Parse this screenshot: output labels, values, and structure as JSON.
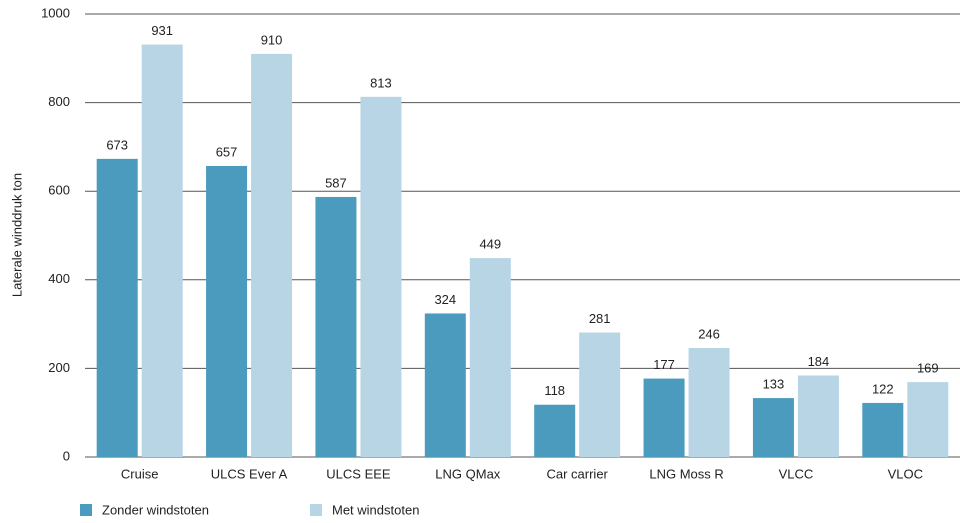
{
  "chart_data": {
    "type": "bar",
    "y_label": "Laterale winddruk ton",
    "categories": [
      "Cruise",
      "ULCS Ever A",
      "ULCS EEE",
      "LNG QMax",
      "Car carrier",
      "LNG Moss R",
      "VLCC",
      "VLOC"
    ],
    "series": [
      {
        "name": "Zonder windstoten",
        "color": "#4a9bbd",
        "values": [
          673,
          657,
          587,
          324,
          118,
          177,
          133,
          122
        ]
      },
      {
        "name": "Met windstoten",
        "color": "#b8d5e6",
        "values": [
          931,
          910,
          813,
          449,
          281,
          246,
          184,
          169
        ]
      }
    ],
    "ylim": [
      0,
      1000
    ],
    "yticks": [
      0,
      200,
      400,
      600,
      800,
      1000
    ],
    "grid": true,
    "legend": "bottom-left"
  }
}
